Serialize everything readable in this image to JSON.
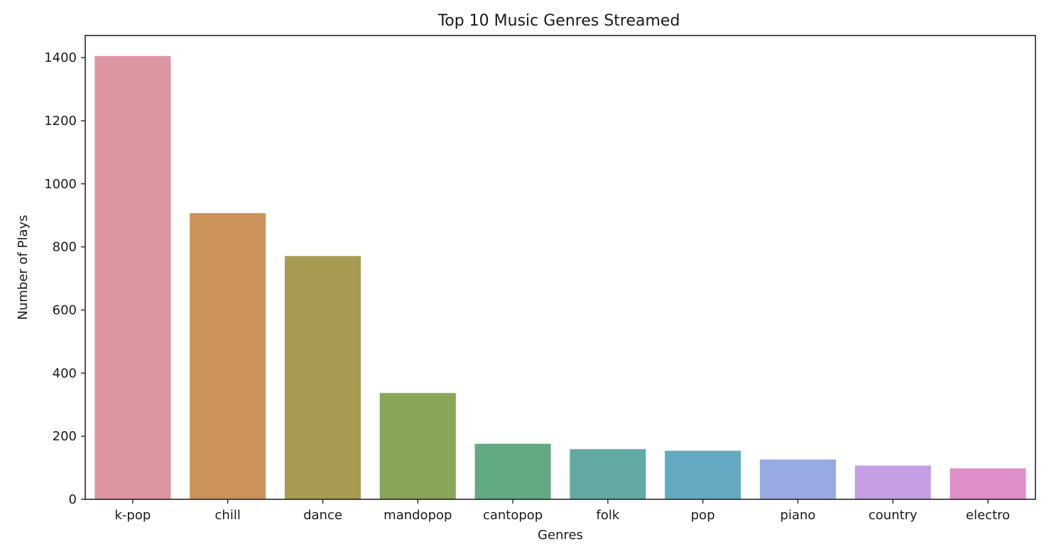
{
  "chart_data": {
    "type": "bar",
    "title": "Top 10 Music Genres Streamed",
    "xlabel": "Genres",
    "ylabel": "Number of Plays",
    "categories": [
      "k-pop",
      "chill",
      "dance",
      "mandopop",
      "cantopop",
      "folk",
      "pop",
      "piano",
      "country",
      "electro"
    ],
    "values": [
      1405,
      907,
      771,
      337,
      176,
      159,
      154,
      126,
      107,
      98
    ],
    "colors": [
      "#dd959f",
      "#cc935a",
      "#a69a50",
      "#88a657",
      "#63aa82",
      "#62a9a3",
      "#64a9c2",
      "#97abe2",
      "#c59ee3",
      "#df8ec8"
    ],
    "ylim": [
      0,
      1470
    ],
    "yticks": [
      0,
      200,
      400,
      600,
      800,
      1000,
      1200,
      1400
    ],
    "grid": false,
    "legend": "none"
  }
}
